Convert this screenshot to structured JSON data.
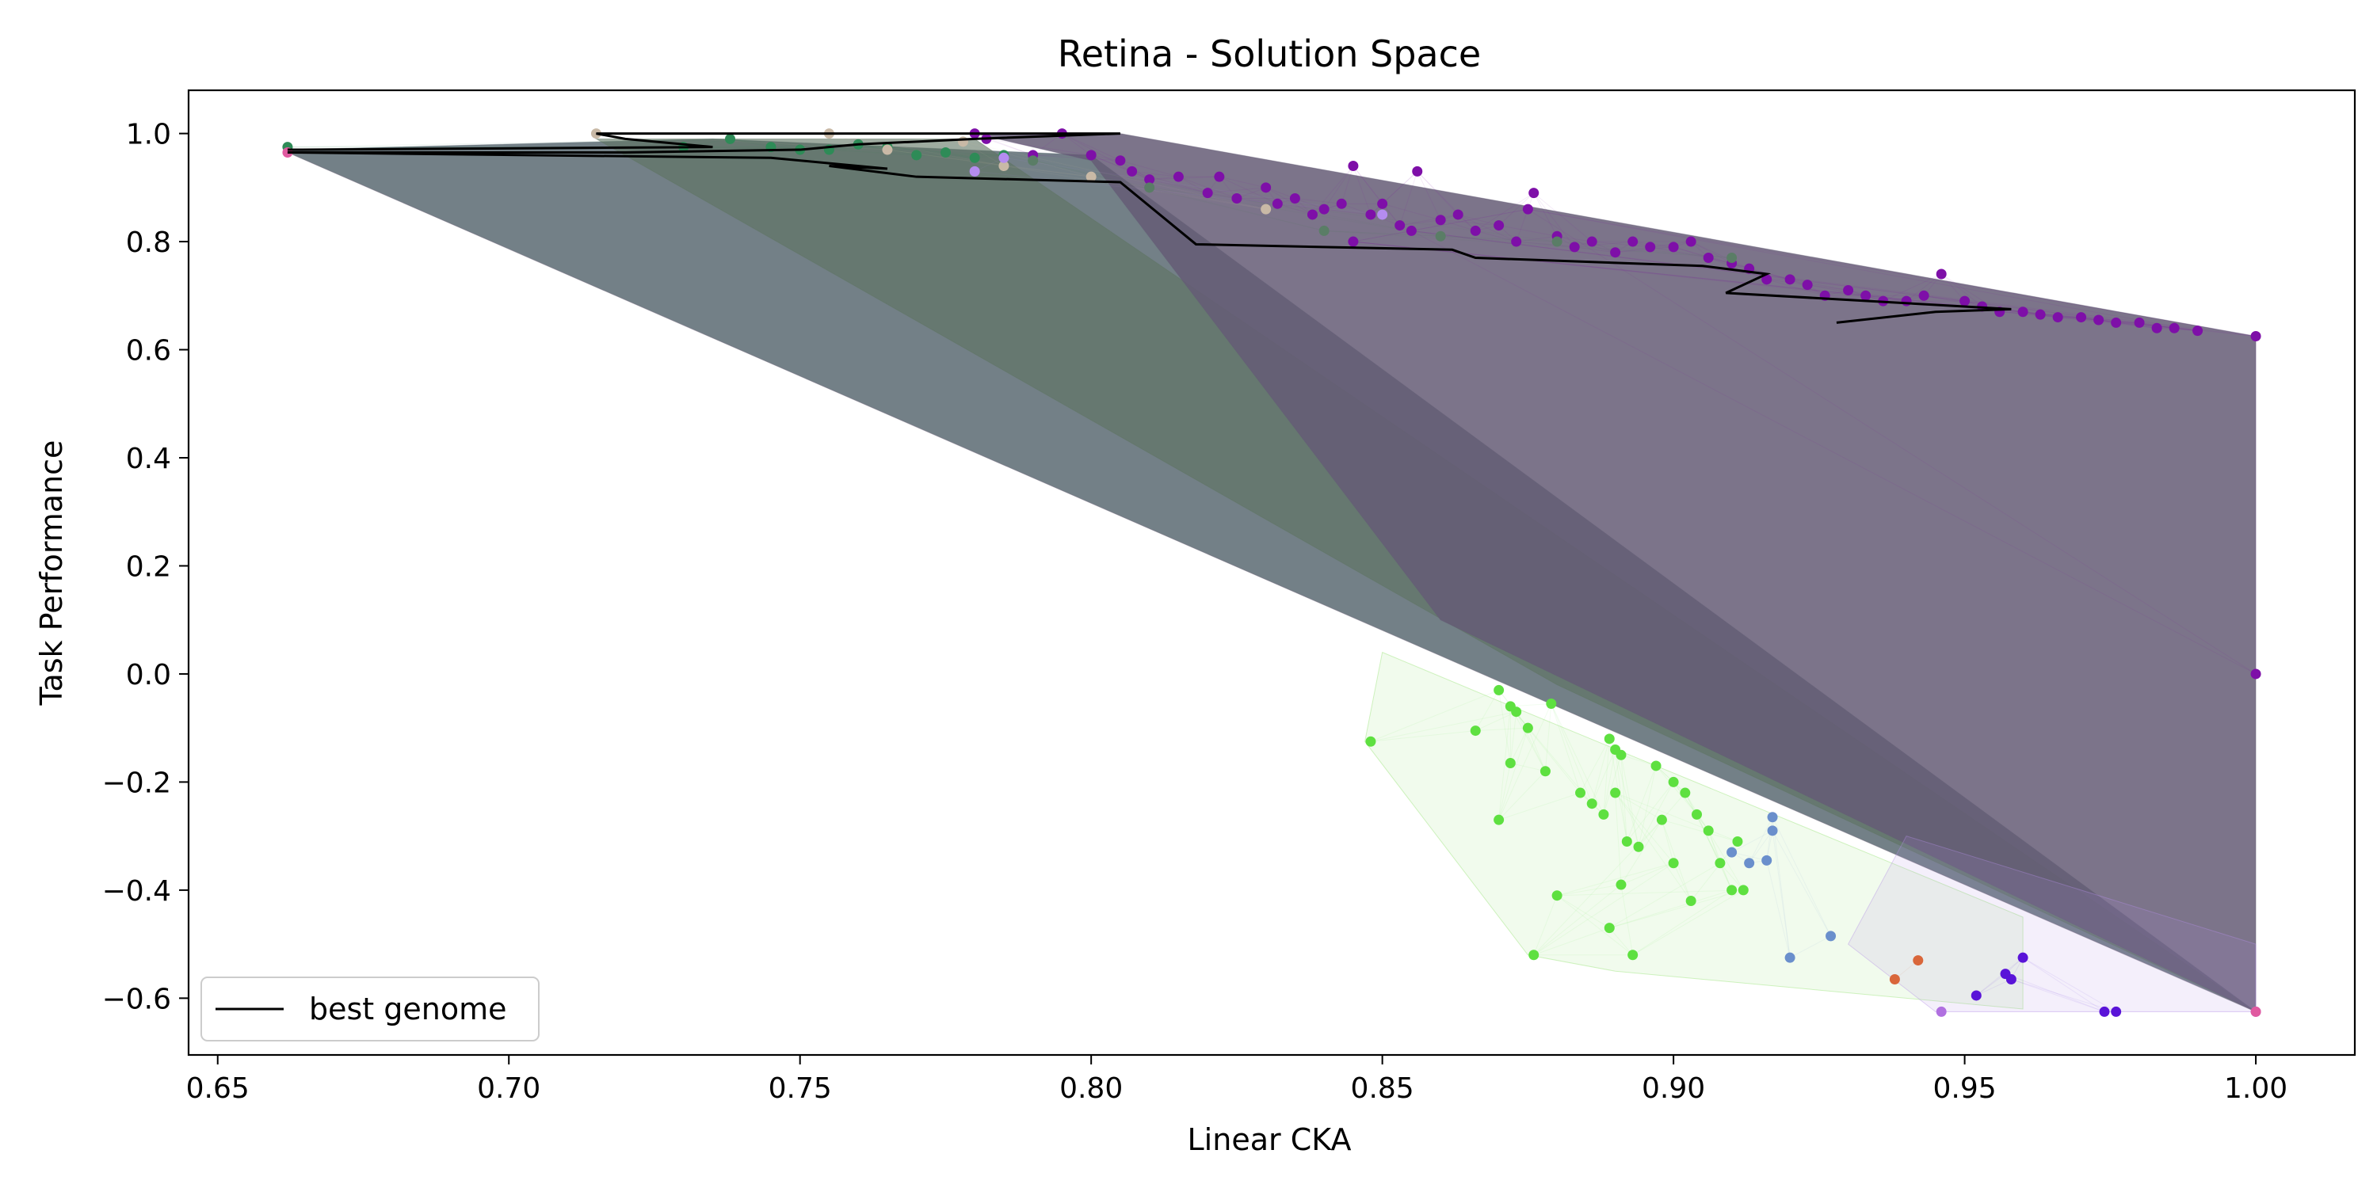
{
  "chart_data": {
    "type": "scatter",
    "title": "Retina - Solution Space",
    "xlabel": "Linear CKA",
    "ylabel": "Task Performance",
    "xlim": [
      0.645,
      1.017
    ],
    "ylim": [
      -0.705,
      1.08
    ],
    "x_ticks": [
      "0.65",
      "0.70",
      "0.75",
      "0.80",
      "0.85",
      "0.90",
      "0.95",
      "1.00"
    ],
    "y_ticks": [
      "−0.6",
      "−0.4",
      "−0.2",
      "0.0",
      "0.2",
      "0.4",
      "0.6",
      "0.8",
      "1.0"
    ],
    "grid": false,
    "legend": {
      "position": "lower-left",
      "label": "best genome"
    },
    "regions": [
      {
        "color": "#5a6a72",
        "opacity": 0.85,
        "points": [
          [
            0.662,
            0.97
          ],
          [
            0.735,
            0.99
          ],
          [
            0.8,
            0.96
          ],
          [
            1.0,
            -0.625
          ],
          [
            0.662,
            0.965
          ]
        ]
      },
      {
        "color": "#5d7360",
        "opacity": 0.6,
        "points": [
          [
            0.715,
            0.99
          ],
          [
            0.78,
            0.99
          ],
          [
            1.0,
            -0.625
          ],
          [
            0.88,
            -0.02
          ]
        ]
      },
      {
        "color": "#655c76",
        "opacity": 0.85,
        "points": [
          [
            0.78,
            1.0
          ],
          [
            0.805,
            1.0
          ],
          [
            1.0,
            0.625
          ],
          [
            1.0,
            -0.625
          ],
          [
            0.86,
            0.1
          ],
          [
            0.8,
            0.95
          ]
        ]
      },
      {
        "color": "#8ee06a",
        "opacity": 0.12,
        "points": [
          [
            0.85,
            0.04
          ],
          [
            0.87,
            -0.05
          ],
          [
            0.96,
            -0.45
          ],
          [
            0.96,
            -0.62
          ],
          [
            0.89,
            -0.55
          ],
          [
            0.875,
            -0.52
          ],
          [
            0.847,
            -0.125
          ]
        ]
      },
      {
        "color": "#b48fe6",
        "opacity": 0.14,
        "points": [
          [
            0.94,
            -0.3
          ],
          [
            1.0,
            -0.5
          ],
          [
            1.0,
            -0.625
          ],
          [
            0.945,
            -0.625
          ],
          [
            0.93,
            -0.5
          ]
        ]
      }
    ],
    "series": [
      {
        "name": "best genome",
        "kind": "line",
        "color": "#000000",
        "x": [
          0.662,
          0.735,
          0.72,
          0.715,
          0.805,
          0.79,
          0.805,
          0.78,
          0.77,
          0.76,
          0.755,
          0.75,
          0.72,
          0.662,
          0.745,
          0.755,
          0.765,
          0.755,
          0.77,
          0.805,
          0.818,
          0.862,
          0.866,
          0.905,
          0.916,
          0.909,
          0.958,
          0.945,
          0.928
        ],
        "y": [
          0.97,
          0.975,
          0.99,
          1.0,
          1.0,
          1.0,
          1.0,
          0.99,
          0.985,
          0.98,
          0.975,
          0.97,
          0.965,
          0.965,
          0.955,
          0.945,
          0.935,
          0.94,
          0.92,
          0.91,
          0.795,
          0.785,
          0.77,
          0.755,
          0.74,
          0.705,
          0.675,
          0.67,
          0.65
        ]
      },
      {
        "kind": "scatter",
        "color": "#7e0fa8",
        "x": [
          0.78,
          0.782,
          0.79,
          0.795,
          0.8,
          0.805,
          0.807,
          0.81,
          0.815,
          0.82,
          0.822,
          0.825,
          0.83,
          0.832,
          0.835,
          0.838,
          0.84,
          0.843,
          0.845,
          0.848,
          0.85,
          0.853,
          0.856,
          0.86,
          0.863,
          0.866,
          0.87,
          0.873,
          0.876,
          0.88,
          0.883,
          0.886,
          0.89,
          0.893,
          0.896,
          0.9,
          0.903,
          0.906,
          0.91,
          0.913,
          0.916,
          0.92,
          0.923,
          0.926,
          0.93,
          0.933,
          0.936,
          0.94,
          0.943,
          0.946,
          0.95,
          0.953,
          0.956,
          0.96,
          0.963,
          0.966,
          0.97,
          0.973,
          0.976,
          0.98,
          0.983,
          0.986,
          0.99,
          0.845,
          0.855,
          0.875,
          1.0,
          1.0
        ],
        "y": [
          1.0,
          0.99,
          0.96,
          1.0,
          0.96,
          0.95,
          0.93,
          0.915,
          0.92,
          0.89,
          0.92,
          0.88,
          0.9,
          0.87,
          0.88,
          0.85,
          0.86,
          0.87,
          0.94,
          0.85,
          0.87,
          0.83,
          0.93,
          0.84,
          0.85,
          0.82,
          0.83,
          0.8,
          0.89,
          0.81,
          0.79,
          0.8,
          0.78,
          0.8,
          0.79,
          0.79,
          0.8,
          0.77,
          0.76,
          0.75,
          0.73,
          0.73,
          0.72,
          0.7,
          0.71,
          0.7,
          0.69,
          0.69,
          0.7,
          0.74,
          0.69,
          0.68,
          0.67,
          0.67,
          0.665,
          0.66,
          0.66,
          0.655,
          0.65,
          0.65,
          0.64,
          0.64,
          0.635,
          0.8,
          0.82,
          0.86,
          0.625,
          0.0
        ]
      },
      {
        "kind": "scatter",
        "color": "#2e8b57",
        "x": [
          0.662,
          0.73,
          0.738,
          0.745,
          0.75,
          0.755,
          0.76,
          0.765,
          0.77,
          0.775,
          0.78,
          0.785
        ],
        "y": [
          0.975,
          0.975,
          0.99,
          0.975,
          0.97,
          0.97,
          0.98,
          0.975,
          0.96,
          0.965,
          0.955,
          0.96
        ]
      },
      {
        "kind": "scatter",
        "color": "#c9b9a6",
        "x": [
          0.715,
          0.755,
          0.765,
          0.778,
          0.785,
          0.8,
          0.83
        ],
        "y": [
          1.0,
          1.0,
          0.97,
          0.985,
          0.94,
          0.92,
          0.86
        ]
      },
      {
        "kind": "scatter",
        "color": "#5a7d66",
        "x": [
          0.79,
          0.81,
          0.84,
          0.86,
          0.88,
          0.91
        ],
        "y": [
          0.95,
          0.9,
          0.82,
          0.81,
          0.8,
          0.77
        ]
      },
      {
        "kind": "scatter",
        "color": "#b58cf0",
        "x": [
          0.785,
          0.85,
          0.78
        ],
        "y": [
          0.955,
          0.85,
          0.93
        ]
      },
      {
        "kind": "scatter",
        "color": "#5ee040",
        "x": [
          0.848,
          0.866,
          0.87,
          0.873,
          0.875,
          0.872,
          0.878,
          0.87,
          0.872,
          0.879,
          0.884,
          0.886,
          0.888,
          0.889,
          0.89,
          0.891,
          0.892,
          0.894,
          0.897,
          0.9,
          0.902,
          0.904,
          0.906,
          0.908,
          0.91,
          0.912,
          0.889,
          0.893,
          0.88,
          0.876,
          0.891,
          0.9,
          0.898,
          0.89,
          0.903,
          0.911
        ],
        "y": [
          -0.125,
          -0.105,
          -0.03,
          -0.07,
          -0.1,
          -0.165,
          -0.18,
          -0.27,
          -0.06,
          -0.055,
          -0.22,
          -0.24,
          -0.26,
          -0.12,
          -0.14,
          -0.15,
          -0.31,
          -0.32,
          -0.17,
          -0.2,
          -0.22,
          -0.26,
          -0.29,
          -0.35,
          -0.4,
          -0.4,
          -0.47,
          -0.52,
          -0.41,
          -0.52,
          -0.39,
          -0.35,
          -0.27,
          -0.22,
          -0.42,
          -0.31
        ]
      },
      {
        "kind": "scatter",
        "color": "#6a8fcc",
        "x": [
          0.91,
          0.913,
          0.916,
          0.917,
          0.917,
          0.92,
          0.927
        ],
        "y": [
          -0.33,
          -0.35,
          -0.345,
          -0.29,
          -0.265,
          -0.525,
          -0.485
        ]
      },
      {
        "kind": "scatter",
        "color": "#d9663a",
        "x": [
          0.938,
          0.942
        ],
        "y": [
          -0.565,
          -0.53
        ]
      },
      {
        "kind": "scatter",
        "color": "#5a14d8",
        "x": [
          0.952,
          0.957,
          0.958,
          0.96,
          0.974,
          0.976
        ],
        "y": [
          -0.595,
          -0.555,
          -0.565,
          -0.525,
          -0.625,
          -0.625
        ]
      },
      {
        "kind": "scatter",
        "color": "#b070e0",
        "x": [
          0.946,
          1.0
        ],
        "y": [
          -0.625,
          -0.625
        ]
      },
      {
        "kind": "scatter",
        "color": "#e05aa0",
        "x": [
          0.662,
          1.0
        ],
        "y": [
          0.965,
          -0.625
        ]
      }
    ]
  }
}
